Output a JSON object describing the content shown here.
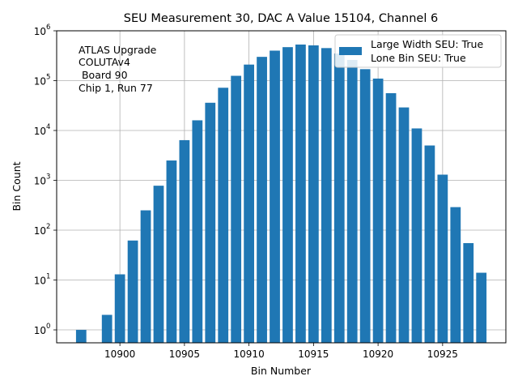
{
  "chart_data": {
    "type": "bar",
    "title": "SEU Measurement 30, DAC A Value 15104, Channel 6",
    "xlabel": "Bin Number",
    "ylabel": "Bin Count",
    "yscale": "log",
    "xlim": [
      10895.1,
      10929.9
    ],
    "ylim": [
      0.55,
      1000000
    ],
    "x_ticks": [
      "10900",
      "10905",
      "10910",
      "10915",
      "10920",
      "10925"
    ],
    "x_tick_values": [
      10900,
      10905,
      10910,
      10915,
      10920,
      10925
    ],
    "y_ticks": [
      {
        "value": 1,
        "label": "10",
        "exp": "0"
      },
      {
        "value": 10,
        "label": "10",
        "exp": "1"
      },
      {
        "value": 100,
        "label": "10",
        "exp": "2"
      },
      {
        "value": 1000,
        "label": "10",
        "exp": "3"
      },
      {
        "value": 10000,
        "label": "10",
        "exp": "4"
      },
      {
        "value": 100000,
        "label": "10",
        "exp": "5"
      },
      {
        "value": 1000000,
        "label": "10",
        "exp": "6"
      }
    ],
    "grid": true,
    "bar_color": "#1f77b4",
    "legend_position": "top-right",
    "legend": [
      "Large Width SEU: True",
      "Lone Bin SEU: True"
    ],
    "annotation": [
      "ATLAS Upgrade",
      "COLUTAv4",
      " Board 90",
      "Chip 1, Run 77"
    ],
    "bars": [
      {
        "x": 10897,
        "y": 1
      },
      {
        "x": 10899,
        "y": 2
      },
      {
        "x": 10900,
        "y": 13
      },
      {
        "x": 10901,
        "y": 62
      },
      {
        "x": 10902,
        "y": 250
      },
      {
        "x": 10903,
        "y": 780
      },
      {
        "x": 10904,
        "y": 2500
      },
      {
        "x": 10905,
        "y": 6400
      },
      {
        "x": 10906,
        "y": 16000
      },
      {
        "x": 10907,
        "y": 36000
      },
      {
        "x": 10908,
        "y": 72000
      },
      {
        "x": 10909,
        "y": 125000
      },
      {
        "x": 10910,
        "y": 210000
      },
      {
        "x": 10911,
        "y": 300000
      },
      {
        "x": 10912,
        "y": 400000
      },
      {
        "x": 10913,
        "y": 470000
      },
      {
        "x": 10914,
        "y": 530000
      },
      {
        "x": 10915,
        "y": 510000
      },
      {
        "x": 10916,
        "y": 450000
      },
      {
        "x": 10917,
        "y": 350000
      },
      {
        "x": 10918,
        "y": 260000
      },
      {
        "x": 10919,
        "y": 170000
      },
      {
        "x": 10920,
        "y": 110000
      },
      {
        "x": 10921,
        "y": 56000
      },
      {
        "x": 10922,
        "y": 29000
      },
      {
        "x": 10923,
        "y": 11000
      },
      {
        "x": 10924,
        "y": 5000
      },
      {
        "x": 10925,
        "y": 1300
      },
      {
        "x": 10926,
        "y": 290
      },
      {
        "x": 10927,
        "y": 55
      },
      {
        "x": 10928,
        "y": 14
      }
    ]
  }
}
